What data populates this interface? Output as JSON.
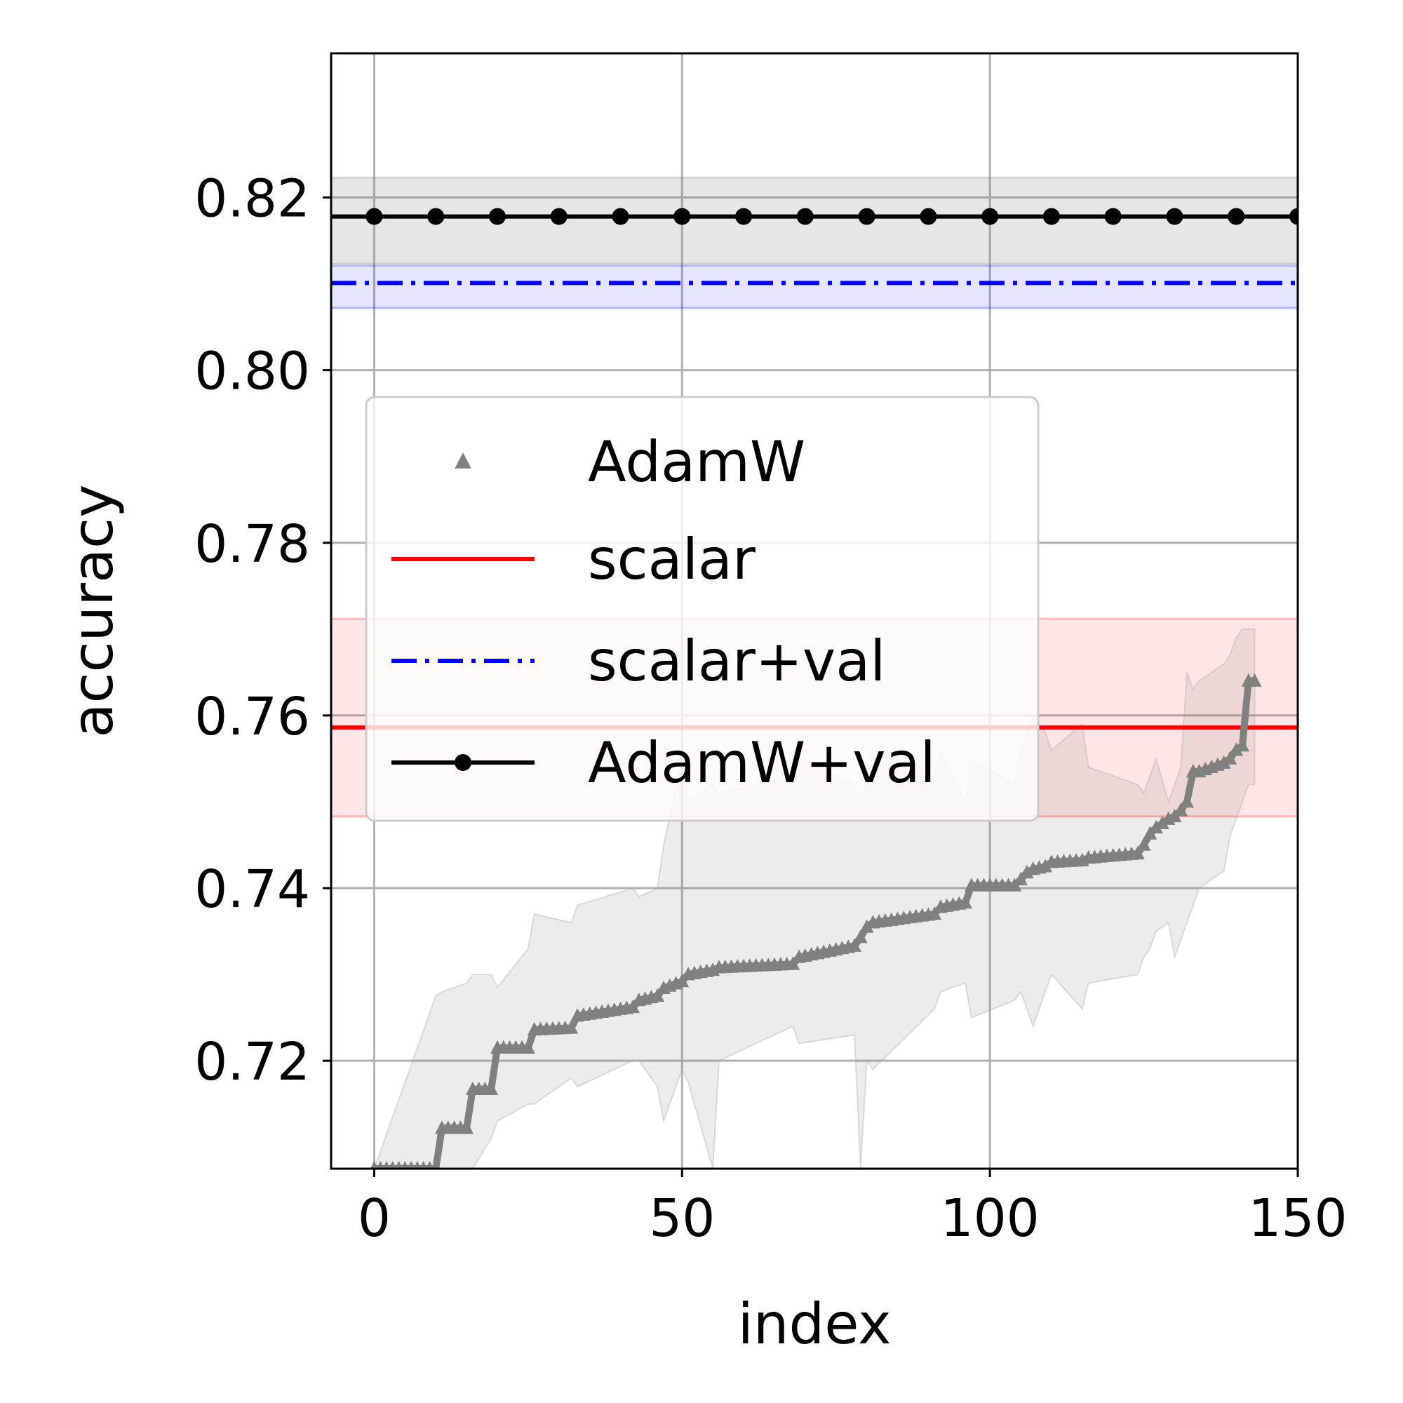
{
  "chart_data": {
    "type": "line",
    "xlabel": "index",
    "ylabel": "accuracy",
    "xlim": [
      -7,
      150
    ],
    "ylim": [
      0.7075,
      0.8367
    ],
    "x_ticks": [
      0,
      50,
      100,
      150
    ],
    "x_tick_labels": [
      "0",
      "50",
      "100",
      "150"
    ],
    "y_ticks": [
      0.72,
      0.74,
      0.76,
      0.78,
      0.8,
      0.82
    ],
    "y_tick_labels": [
      "0.72",
      "0.74",
      "0.76",
      "0.78",
      "0.80",
      "0.82"
    ],
    "grid": true,
    "legend_position": "center-left",
    "series": [
      {
        "name": "AdamW",
        "style": "triangle-markers",
        "color": "#808080",
        "x": [
          0,
          10,
          11,
          15,
          16,
          19,
          20,
          25,
          26,
          32,
          33,
          42,
          43,
          46,
          47,
          50,
          51,
          55,
          56,
          68,
          69,
          78,
          79,
          80,
          81,
          91,
          92,
          96,
          97,
          104,
          105,
          106,
          107,
          109,
          110,
          115,
          116,
          124,
          125,
          126,
          127,
          129,
          130,
          131,
          132,
          133,
          134,
          138,
          139,
          140,
          141,
          142,
          143
        ],
        "y": [
          0.7075,
          0.7075,
          0.7122,
          0.7122,
          0.7167,
          0.7167,
          0.7215,
          0.7215,
          0.7236,
          0.7238,
          0.7252,
          0.7262,
          0.727,
          0.7275,
          0.7284,
          0.7292,
          0.73,
          0.7305,
          0.7308,
          0.7312,
          0.732,
          0.7333,
          0.7343,
          0.7355,
          0.736,
          0.737,
          0.7378,
          0.7383,
          0.7403,
          0.7403,
          0.741,
          0.7418,
          0.7422,
          0.7425,
          0.743,
          0.7432,
          0.7435,
          0.744,
          0.745,
          0.7463,
          0.747,
          0.748,
          0.7483,
          0.749,
          0.75,
          0.7535,
          0.7535,
          0.7545,
          0.755,
          0.756,
          0.7565,
          0.764,
          0.764
        ],
        "band_upper": [
          0.7075,
          0.7275,
          0.728,
          0.729,
          0.73,
          0.73,
          0.7285,
          0.733,
          0.737,
          0.736,
          0.738,
          0.74,
          0.739,
          0.74,
          0.745,
          0.755,
          0.75,
          0.752,
          0.751,
          0.753,
          0.755,
          0.752,
          0.75,
          0.752,
          0.756,
          0.753,
          0.756,
          0.75,
          0.755,
          0.752,
          0.756,
          0.758,
          0.76,
          0.758,
          0.756,
          0.759,
          0.754,
          0.752,
          0.751,
          0.753,
          0.755,
          0.75,
          0.752,
          0.754,
          0.765,
          0.763,
          0.764,
          0.766,
          0.767,
          0.769,
          0.77,
          0.77,
          0.77
        ],
        "band_lower": [
          0.7075,
          0.7075,
          0.7075,
          0.7075,
          0.7075,
          0.711,
          0.713,
          0.715,
          0.715,
          0.718,
          0.717,
          0.72,
          0.72,
          0.717,
          0.713,
          0.719,
          0.7175,
          0.7075,
          0.72,
          0.724,
          0.722,
          0.723,
          0.7075,
          0.72,
          0.719,
          0.726,
          0.728,
          0.729,
          0.725,
          0.727,
          0.728,
          0.726,
          0.724,
          0.728,
          0.73,
          0.726,
          0.729,
          0.73,
          0.732,
          0.733,
          0.735,
          0.736,
          0.732,
          0.734,
          0.736,
          0.738,
          0.74,
          0.742,
          0.746,
          0.748,
          0.75,
          0.752,
          0.752
        ]
      },
      {
        "name": "scalar",
        "style": "solid-line",
        "color": "#ff0000",
        "y_constant": 0.7586,
        "band": [
          0.7483,
          0.7712
        ]
      },
      {
        "name": "scalar+val",
        "style": "dash-dot-line",
        "color": "#0000ff",
        "y_constant": 0.8101,
        "band": [
          0.8072,
          0.8121
        ]
      },
      {
        "name": "AdamW+val",
        "style": "solid-line-with-dots",
        "color": "#000000",
        "y_constant": 0.8178,
        "markers_x": [
          0,
          10,
          20,
          30,
          40,
          50,
          60,
          70,
          80,
          90,
          100,
          110,
          120,
          130,
          140,
          150
        ],
        "band": [
          0.8123,
          0.8223
        ]
      }
    ]
  }
}
